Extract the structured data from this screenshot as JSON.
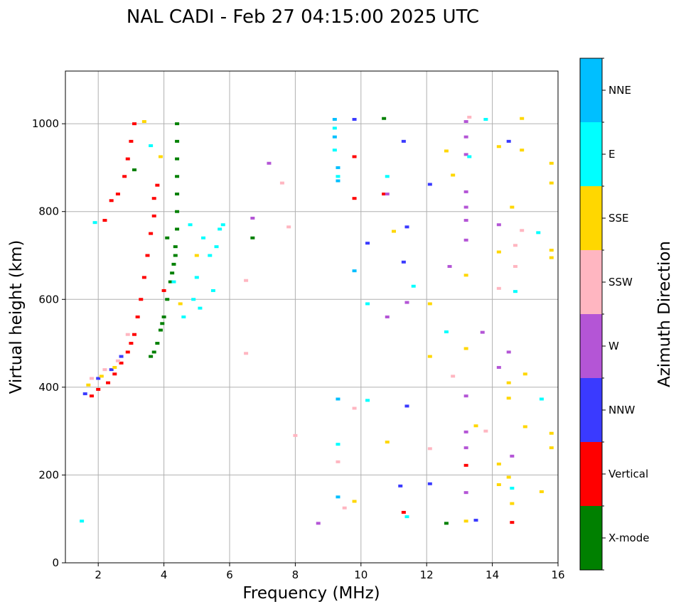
{
  "title": "NAL CADI - Feb 27 04:15:00 2025 UTC",
  "chart_data": {
    "type": "scatter",
    "title": "NAL CADI - Feb 27 04:15:00 2025 UTC",
    "xlabel": "Frequency (MHz)",
    "ylabel": "Virtual height (km)",
    "xlim": [
      1,
      16
    ],
    "ylim": [
      0,
      1120
    ],
    "xticks": [
      2,
      4,
      6,
      8,
      10,
      12,
      14,
      16
    ],
    "yticks": [
      0,
      200,
      400,
      600,
      800,
      1000
    ],
    "xtick_labels": [
      "2",
      "4",
      "6",
      "8",
      "10",
      "12",
      "14",
      "16"
    ],
    "ytick_labels": [
      "0",
      "200",
      "400",
      "600",
      "800",
      "1000"
    ],
    "grid": true,
    "colorbar": {
      "label": "Azimuth Direction",
      "categories": [
        {
          "name": "X-mode",
          "color": "#008000"
        },
        {
          "name": "Vertical",
          "color": "#ff0000"
        },
        {
          "name": "NNW",
          "color": "#3a3aff"
        },
        {
          "name": "W",
          "color": "#b455d6"
        },
        {
          "name": "SSW",
          "color": "#ffb6c1"
        },
        {
          "name": "SSE",
          "color": "#ffd700"
        },
        {
          "name": "E",
          "color": "#00ffff"
        },
        {
          "name": "NNE",
          "color": "#00bfff"
        }
      ]
    },
    "series": [
      {
        "name": "X-mode",
        "points": [
          [
            4.4,
            1000
          ],
          [
            4.4,
            960
          ],
          [
            4.4,
            920
          ],
          [
            4.4,
            880
          ],
          [
            4.4,
            840
          ],
          [
            4.4,
            800
          ],
          [
            4.4,
            760
          ],
          [
            4.35,
            720
          ],
          [
            4.3,
            680
          ],
          [
            4.2,
            640
          ],
          [
            4.1,
            600
          ],
          [
            4.0,
            560
          ],
          [
            3.9,
            530
          ],
          [
            3.8,
            500
          ],
          [
            3.7,
            480
          ],
          [
            3.6,
            470
          ],
          [
            3.1,
            895
          ],
          [
            4.1,
            740
          ],
          [
            4.25,
            660
          ],
          [
            4.35,
            700
          ],
          [
            3.95,
            545
          ],
          [
            6.7,
            740
          ],
          [
            10.7,
            1012
          ],
          [
            12.6,
            90
          ]
        ]
      },
      {
        "name": "Vertical",
        "points": [
          [
            3.1,
            1000
          ],
          [
            3.0,
            960
          ],
          [
            2.9,
            920
          ],
          [
            2.8,
            880
          ],
          [
            2.6,
            840
          ],
          [
            2.4,
            825
          ],
          [
            2.2,
            780
          ],
          [
            3.7,
            830
          ],
          [
            3.7,
            790
          ],
          [
            3.6,
            750
          ],
          [
            3.5,
            700
          ],
          [
            3.4,
            650
          ],
          [
            3.3,
            600
          ],
          [
            3.2,
            560
          ],
          [
            3.1,
            520
          ],
          [
            3.0,
            500
          ],
          [
            2.9,
            480
          ],
          [
            2.7,
            455
          ],
          [
            2.5,
            430
          ],
          [
            2.3,
            410
          ],
          [
            2.0,
            395
          ],
          [
            1.8,
            380
          ],
          [
            3.8,
            860
          ],
          [
            4.0,
            620
          ],
          [
            9.8,
            925
          ],
          [
            9.8,
            830
          ],
          [
            10.7,
            840
          ],
          [
            11.3,
            115
          ],
          [
            13.2,
            222
          ],
          [
            14.6,
            92
          ]
        ]
      },
      {
        "name": "NNW",
        "points": [
          [
            1.6,
            385
          ],
          [
            2.0,
            420
          ],
          [
            2.4,
            440
          ],
          [
            2.7,
            470
          ],
          [
            9.8,
            1010
          ],
          [
            10.2,
            728
          ],
          [
            11.3,
            960
          ],
          [
            11.4,
            765
          ],
          [
            11.3,
            685
          ],
          [
            11.4,
            357
          ],
          [
            11.2,
            175
          ],
          [
            12.1,
            862
          ],
          [
            12.1,
            180
          ],
          [
            13.5,
            97
          ],
          [
            14.5,
            960
          ]
        ]
      },
      {
        "name": "W",
        "points": [
          [
            6.7,
            785
          ],
          [
            7.2,
            910
          ],
          [
            10.8,
            840
          ],
          [
            10.8,
            560
          ],
          [
            11.4,
            593
          ],
          [
            12.7,
            675
          ],
          [
            13.2,
            1005
          ],
          [
            13.2,
            970
          ],
          [
            13.2,
            930
          ],
          [
            13.2,
            845
          ],
          [
            13.2,
            810
          ],
          [
            13.2,
            780
          ],
          [
            13.2,
            735
          ],
          [
            13.7,
            525
          ],
          [
            13.2,
            380
          ],
          [
            13.2,
            298
          ],
          [
            13.2,
            262
          ],
          [
            13.2,
            160
          ],
          [
            8.7,
            90
          ],
          [
            14.5,
            480
          ],
          [
            14.2,
            445
          ],
          [
            14.2,
            770
          ],
          [
            14.6,
            243
          ]
        ]
      },
      {
        "name": "SSW",
        "points": [
          [
            1.8,
            420
          ],
          [
            2.2,
            440
          ],
          [
            2.6,
            460
          ],
          [
            2.9,
            520
          ],
          [
            6.5,
            643
          ],
          [
            6.5,
            477
          ],
          [
            7.6,
            865
          ],
          [
            7.8,
            765
          ],
          [
            8.0,
            290
          ],
          [
            9.3,
            230
          ],
          [
            9.5,
            125
          ],
          [
            9.8,
            352
          ],
          [
            12.1,
            260
          ],
          [
            12.8,
            425
          ],
          [
            13.8,
            300
          ],
          [
            14.2,
            625
          ],
          [
            14.7,
            723
          ],
          [
            14.7,
            675
          ],
          [
            14.9,
            757
          ],
          [
            13.3,
            1015
          ]
        ]
      },
      {
        "name": "SSE",
        "points": [
          [
            1.7,
            405
          ],
          [
            2.1,
            425
          ],
          [
            2.5,
            445
          ],
          [
            3.4,
            1005
          ],
          [
            3.9,
            925
          ],
          [
            4.5,
            590
          ],
          [
            5.0,
            700
          ],
          [
            9.8,
            140
          ],
          [
            10.8,
            275
          ],
          [
            11.0,
            755
          ],
          [
            12.1,
            590
          ],
          [
            12.1,
            470
          ],
          [
            12.6,
            938
          ],
          [
            12.8,
            883
          ],
          [
            13.2,
            655
          ],
          [
            13.2,
            488
          ],
          [
            13.5,
            312
          ],
          [
            13.2,
            95
          ],
          [
            14.2,
            948
          ],
          [
            14.2,
            708
          ],
          [
            14.6,
            810
          ],
          [
            14.5,
            410
          ],
          [
            14.5,
            375
          ],
          [
            14.9,
            1012
          ],
          [
            14.9,
            940
          ],
          [
            15.0,
            430
          ],
          [
            15.0,
            310
          ],
          [
            15.5,
            162
          ],
          [
            15.8,
            910
          ],
          [
            15.8,
            865
          ],
          [
            15.8,
            712
          ],
          [
            15.8,
            695
          ],
          [
            15.8,
            295
          ],
          [
            15.8,
            262
          ],
          [
            14.6,
            135
          ],
          [
            14.5,
            195
          ],
          [
            14.2,
            225
          ],
          [
            14.2,
            178
          ]
        ]
      },
      {
        "name": "E",
        "points": [
          [
            1.5,
            95
          ],
          [
            1.9,
            775
          ],
          [
            3.6,
            950
          ],
          [
            4.8,
            770
          ],
          [
            5.0,
            650
          ],
          [
            5.2,
            740
          ],
          [
            5.4,
            700
          ],
          [
            5.6,
            720
          ],
          [
            5.7,
            760
          ],
          [
            5.8,
            770
          ],
          [
            4.9,
            600
          ],
          [
            5.1,
            580
          ],
          [
            5.5,
            620
          ],
          [
            4.6,
            560
          ],
          [
            4.3,
            640
          ],
          [
            9.2,
            990
          ],
          [
            9.2,
            940
          ],
          [
            9.3,
            880
          ],
          [
            9.3,
            270
          ],
          [
            10.2,
            590
          ],
          [
            10.2,
            370
          ],
          [
            11.4,
            105
          ],
          [
            12.6,
            526
          ],
          [
            13.3,
            925
          ],
          [
            13.8,
            1010
          ],
          [
            14.6,
            170
          ],
          [
            14.7,
            618
          ],
          [
            15.4,
            752
          ],
          [
            15.5,
            373
          ],
          [
            11.6,
            630
          ],
          [
            10.8,
            880
          ]
        ]
      },
      {
        "name": "NNE",
        "points": [
          [
            9.2,
            1010
          ],
          [
            9.2,
            970
          ],
          [
            9.3,
            900
          ],
          [
            9.3,
            870
          ],
          [
            9.8,
            665
          ],
          [
            9.3,
            373
          ],
          [
            9.3,
            150
          ]
        ]
      }
    ]
  }
}
